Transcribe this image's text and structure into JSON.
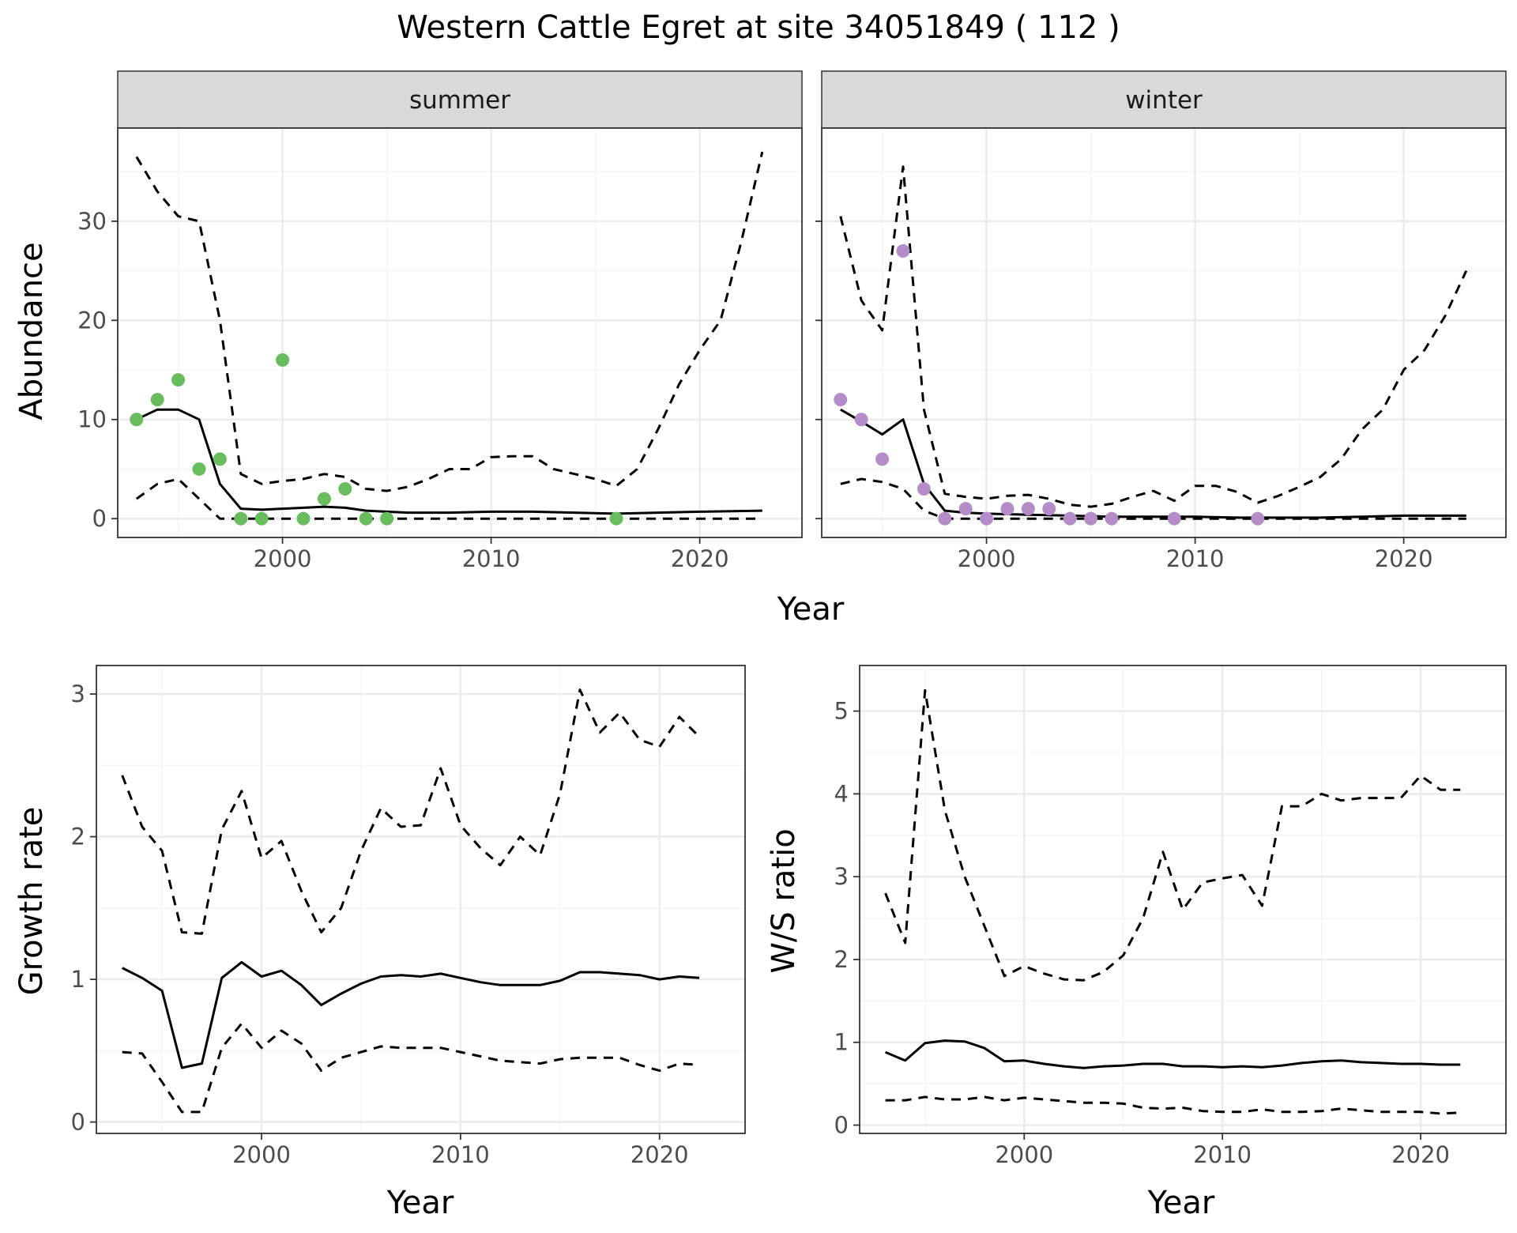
{
  "title": "Western Cattle Egret at site 34051849 ( 112 )",
  "colors": {
    "summer_points": "#6abd5e",
    "winter_points": "#b48cc8",
    "line": "#000000",
    "grid_major": "#ebebeb",
    "grid_minor": "#f4f4f4",
    "strip_bg": "#d9d9d9"
  },
  "chart_data": [
    {
      "id": "abundance",
      "type": "line",
      "facets": [
        "summer",
        "winter"
      ],
      "xlabel": "Year",
      "ylabel": "Abundance",
      "xticks": [
        2000,
        2010,
        2020
      ],
      "yticks": [
        0,
        10,
        20,
        30
      ],
      "xlim": [
        1992.1,
        2024.9
      ],
      "ylim": [
        -1.9,
        39.4
      ],
      "grid": true,
      "panels": [
        {
          "name": "summer",
          "point_color": "#6abd5e",
          "points": [
            [
              1993,
              10
            ],
            [
              1994,
              12
            ],
            [
              1995,
              14
            ],
            [
              1996,
              5
            ],
            [
              1997,
              6
            ],
            [
              1998,
              0
            ],
            [
              1999,
              0
            ],
            [
              2000,
              16
            ],
            [
              2001,
              0
            ],
            [
              2002,
              2
            ],
            [
              2003,
              3
            ],
            [
              2004,
              0
            ],
            [
              2005,
              0
            ],
            [
              2016,
              0
            ]
          ],
          "series": [
            {
              "style": "solid",
              "x": [
                1993,
                1994,
                1995,
                1996,
                1997,
                1998,
                1999,
                2000,
                2001,
                2002,
                2003,
                2004,
                2005,
                2006,
                2008,
                2010,
                2012,
                2014,
                2016,
                2018,
                2020,
                2023
              ],
              "values": [
                10,
                11,
                11,
                10,
                3.5,
                1,
                0.9,
                1,
                1.1,
                1.2,
                1.1,
                0.8,
                0.7,
                0.6,
                0.6,
                0.7,
                0.7,
                0.6,
                0.5,
                0.6,
                0.7,
                0.8
              ]
            },
            {
              "style": "dashed",
              "x": [
                1993,
                1994,
                1995,
                1996,
                1997,
                1998,
                1999,
                2000,
                2001,
                2002,
                2003,
                2004,
                2005,
                2006,
                2007,
                2008,
                2009,
                2010,
                2011,
                2012,
                2013,
                2014,
                2015,
                2016,
                2017,
                2018,
                2019,
                2020,
                2021,
                2022,
                2023
              ],
              "values": [
                36.5,
                33,
                30.5,
                30,
                20,
                4.5,
                3.5,
                3.8,
                4,
                4.5,
                4.2,
                3,
                2.8,
                3.2,
                4,
                5,
                5,
                6.2,
                6.3,
                6.3,
                5,
                4.5,
                4,
                3.3,
                5,
                9,
                13.5,
                17,
                20,
                28,
                37
              ]
            },
            {
              "style": "dashed",
              "x": [
                1993,
                1994,
                1995,
                1996,
                1997,
                1998,
                2023
              ],
              "values": [
                2,
                3.5,
                4,
                2,
                0,
                0,
                0
              ]
            }
          ]
        },
        {
          "name": "winter",
          "point_color": "#b48cc8",
          "points": [
            [
              1993,
              12
            ],
            [
              1994,
              10
            ],
            [
              1995,
              6
            ],
            [
              1996,
              27
            ],
            [
              1997,
              3
            ],
            [
              1998,
              0
            ],
            [
              1999,
              1
            ],
            [
              2000,
              0
            ],
            [
              2001,
              1
            ],
            [
              2002,
              1
            ],
            [
              2003,
              1
            ],
            [
              2004,
              0
            ],
            [
              2005,
              0
            ],
            [
              2006,
              0
            ],
            [
              2009,
              0
            ],
            [
              2013,
              0
            ]
          ],
          "series": [
            {
              "style": "solid",
              "x": [
                1993,
                1994,
                1995,
                1996,
                1997,
                1998,
                1999,
                2000,
                2002,
                2004,
                2006,
                2008,
                2010,
                2012,
                2014,
                2016,
                2018,
                2020,
                2023
              ],
              "values": [
                11,
                9.8,
                8.5,
                10,
                3.5,
                0.8,
                0.6,
                0.5,
                0.4,
                0.3,
                0.2,
                0.2,
                0.2,
                0.1,
                0.1,
                0.1,
                0.2,
                0.3,
                0.3
              ]
            },
            {
              "style": "dashed",
              "x": [
                1993,
                1994,
                1995,
                1996,
                1997,
                1998,
                1999,
                2000,
                2001,
                2002,
                2003,
                2004,
                2005,
                2006,
                2007,
                2008,
                2009,
                2010,
                2011,
                2012,
                2013,
                2014,
                2015,
                2016,
                2017,
                2018,
                2019,
                2020,
                2021,
                2022,
                2023
              ],
              "values": [
                30.5,
                22,
                19,
                35.5,
                11,
                2.5,
                2.2,
                2,
                2.3,
                2.4,
                2,
                1.4,
                1.2,
                1.5,
                2.2,
                2.8,
                1.8,
                3.3,
                3.3,
                2.7,
                1.6,
                2.3,
                3.2,
                4.2,
                6,
                9,
                11,
                15,
                17,
                20.5,
                25
              ]
            },
            {
              "style": "dashed",
              "x": [
                1993,
                1994,
                1995,
                1996,
                1997,
                1998,
                2023
              ],
              "values": [
                3.5,
                4,
                3.7,
                3,
                0.8,
                0,
                0
              ]
            }
          ]
        }
      ]
    },
    {
      "id": "growth_rate",
      "type": "line",
      "xlabel": "Year",
      "ylabel": "Growth rate",
      "xticks": [
        2000,
        2010,
        2020
      ],
      "yticks": [
        0,
        1,
        2,
        3
      ],
      "xlim": [
        1991.7,
        2024.3
      ],
      "ylim": [
        -0.08,
        3.2
      ],
      "grid": true,
      "series": [
        {
          "style": "solid",
          "x": [
            1993,
            1994,
            1995,
            1996,
            1997,
            1998,
            1999,
            2000,
            2001,
            2002,
            2003,
            2004,
            2005,
            2006,
            2007,
            2008,
            2009,
            2010,
            2011,
            2012,
            2013,
            2014,
            2015,
            2016,
            2017,
            2018,
            2019,
            2020,
            2021,
            2022
          ],
          "values": [
            1.08,
            1.01,
            0.92,
            0.38,
            0.41,
            1.01,
            1.12,
            1.02,
            1.06,
            0.96,
            0.82,
            0.9,
            0.97,
            1.02,
            1.03,
            1.02,
            1.04,
            1.01,
            0.98,
            0.96,
            0.96,
            0.96,
            0.99,
            1.05,
            1.05,
            1.04,
            1.03,
            1.0,
            1.02,
            1.01
          ]
        },
        {
          "style": "dashed",
          "x": [
            1993,
            1994,
            1995,
            1996,
            1997,
            1998,
            1999,
            2000,
            2001,
            2002,
            2003,
            2004,
            2005,
            2006,
            2007,
            2008,
            2009,
            2010,
            2011,
            2012,
            2013,
            2014,
            2015,
            2016,
            2017,
            2018,
            2019,
            2020,
            2021,
            2022
          ],
          "values": [
            2.43,
            2.07,
            1.9,
            1.33,
            1.32,
            2.05,
            2.32,
            1.85,
            1.97,
            1.62,
            1.33,
            1.5,
            1.9,
            2.2,
            2.07,
            2.08,
            2.48,
            2.08,
            1.92,
            1.8,
            2.0,
            1.87,
            2.3,
            3.03,
            2.73,
            2.87,
            2.68,
            2.63,
            2.84,
            2.7
          ]
        },
        {
          "style": "dashed",
          "x": [
            1993,
            1994,
            1995,
            1996,
            1997,
            1998,
            1999,
            2000,
            2001,
            2002,
            2003,
            2004,
            2005,
            2006,
            2007,
            2008,
            2009,
            2010,
            2011,
            2012,
            2013,
            2014,
            2015,
            2016,
            2017,
            2018,
            2019,
            2020,
            2021,
            2022
          ],
          "values": [
            0.49,
            0.48,
            0.28,
            0.07,
            0.07,
            0.52,
            0.69,
            0.52,
            0.64,
            0.55,
            0.36,
            0.45,
            0.49,
            0.53,
            0.52,
            0.52,
            0.52,
            0.49,
            0.46,
            0.43,
            0.42,
            0.41,
            0.44,
            0.45,
            0.45,
            0.45,
            0.4,
            0.36,
            0.41,
            0.4
          ]
        }
      ]
    },
    {
      "id": "ws_ratio",
      "type": "line",
      "xlabel": "Year",
      "ylabel": "W/S ratio",
      "xticks": [
        2000,
        2010,
        2020
      ],
      "yticks": [
        0,
        1,
        2,
        3,
        4,
        5
      ],
      "xlim": [
        1991.7,
        2024.3
      ],
      "ylim": [
        -0.1,
        5.55
      ],
      "grid": true,
      "series": [
        {
          "style": "solid",
          "x": [
            1993,
            1994,
            1995,
            1996,
            1997,
            1998,
            1999,
            2000,
            2001,
            2002,
            2003,
            2004,
            2005,
            2006,
            2007,
            2008,
            2009,
            2010,
            2011,
            2012,
            2013,
            2014,
            2015,
            2016,
            2017,
            2018,
            2019,
            2020,
            2021,
            2022
          ],
          "values": [
            0.88,
            0.78,
            0.99,
            1.02,
            1.01,
            0.93,
            0.77,
            0.78,
            0.74,
            0.71,
            0.69,
            0.71,
            0.72,
            0.74,
            0.74,
            0.71,
            0.71,
            0.7,
            0.71,
            0.7,
            0.72,
            0.75,
            0.77,
            0.78,
            0.76,
            0.75,
            0.74,
            0.74,
            0.73,
            0.73
          ]
        },
        {
          "style": "dashed",
          "x": [
            1993,
            1994,
            1995,
            1996,
            1997,
            1998,
            1999,
            2000,
            2001,
            2002,
            2003,
            2004,
            2005,
            2006,
            2007,
            2008,
            2009,
            2010,
            2011,
            2012,
            2013,
            2014,
            2015,
            2016,
            2017,
            2018,
            2019,
            2020,
            2021,
            2022
          ],
          "values": [
            2.8,
            2.2,
            5.25,
            3.8,
            3.0,
            2.4,
            1.8,
            1.92,
            1.83,
            1.76,
            1.75,
            1.85,
            2.05,
            2.5,
            3.3,
            2.6,
            2.93,
            2.98,
            3.02,
            2.65,
            3.85,
            3.85,
            4.0,
            3.92,
            3.95,
            3.95,
            3.95,
            4.22,
            4.05,
            4.05
          ]
        },
        {
          "style": "dashed",
          "x": [
            1993,
            1994,
            1995,
            1996,
            1997,
            1998,
            1999,
            2000,
            2001,
            2002,
            2003,
            2004,
            2005,
            2006,
            2007,
            2008,
            2009,
            2010,
            2011,
            2012,
            2013,
            2014,
            2015,
            2016,
            2017,
            2018,
            2019,
            2020,
            2021,
            2022
          ],
          "values": [
            0.3,
            0.3,
            0.34,
            0.31,
            0.31,
            0.34,
            0.3,
            0.33,
            0.31,
            0.29,
            0.27,
            0.27,
            0.26,
            0.21,
            0.2,
            0.21,
            0.17,
            0.16,
            0.16,
            0.19,
            0.16,
            0.16,
            0.17,
            0.2,
            0.18,
            0.16,
            0.16,
            0.16,
            0.14,
            0.15
          ]
        }
      ]
    }
  ]
}
